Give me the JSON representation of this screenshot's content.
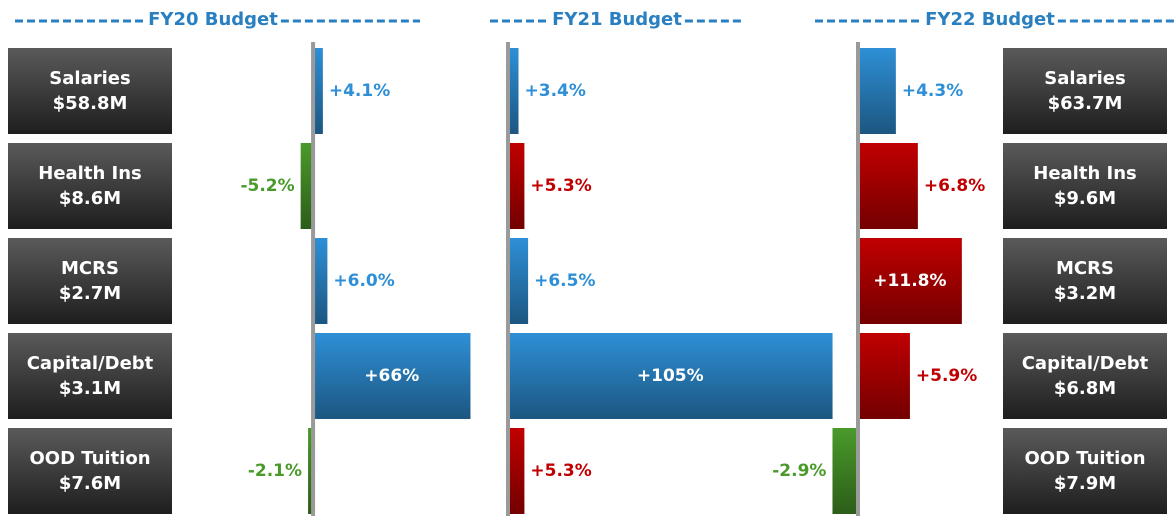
{
  "left_boxes": [
    {
      "name": "Salaries",
      "amount": "$58.8M"
    },
    {
      "name": "Health Ins",
      "amount": "$8.6M"
    },
    {
      "name": "MCRS",
      "amount": "$2.7M"
    },
    {
      "name": "Capital/Debt",
      "amount": "$3.1M"
    },
    {
      "name": "OOD Tuition",
      "amount": "$7.6M"
    }
  ],
  "right_boxes": [
    {
      "name": "Salaries",
      "amount": "$63.7M"
    },
    {
      "name": "Health Ins",
      "amount": "$9.6M"
    },
    {
      "name": "MCRS",
      "amount": "$3.2M"
    },
    {
      "name": "Capital/Debt",
      "amount": "$6.8M"
    },
    {
      "name": "OOD Tuition",
      "amount": "$7.9M"
    }
  ],
  "chart_data": [
    {
      "type": "bar",
      "orientation": "horizontal",
      "title": "FY20 Budget",
      "values": [
        4.1,
        -5.2,
        6.0,
        66,
        -2.1
      ],
      "value_labels": [
        "+4.1%",
        "-5.2%",
        "+6.0%",
        "+66%",
        "-2.1%"
      ],
      "colors": [
        "#2e8fd6",
        "#4a9a2a",
        "#2e8fd6",
        "#2e8fd6",
        "#4a9a2a"
      ],
      "xlim": [
        -60,
        70
      ]
    },
    {
      "type": "bar",
      "orientation": "horizontal",
      "title": "FY21 Budget",
      "values": [
        3.4,
        5.3,
        6.5,
        105,
        5.3
      ],
      "value_labels": [
        "+3.4%",
        "+5.3%",
        "+6.5%",
        "+105%",
        "+5.3%"
      ],
      "colors": [
        "#2e8fd6",
        "#c00000",
        "#2e8fd6",
        "#2e8fd6",
        "#c00000"
      ],
      "xlim": [
        0,
        110
      ]
    },
    {
      "type": "bar",
      "orientation": "horizontal",
      "title": "FY22 Budget",
      "values": [
        4.3,
        6.8,
        11.8,
        5.9,
        -2.9
      ],
      "value_labels": [
        "+4.3%",
        "+6.8%",
        "+11.8%",
        "+5.9%",
        "-2.9%"
      ],
      "colors": [
        "#2e8fd6",
        "#c00000",
        "#c00000",
        "#c00000",
        "#4a9a2a"
      ],
      "xlim": [
        -10,
        15
      ]
    }
  ]
}
